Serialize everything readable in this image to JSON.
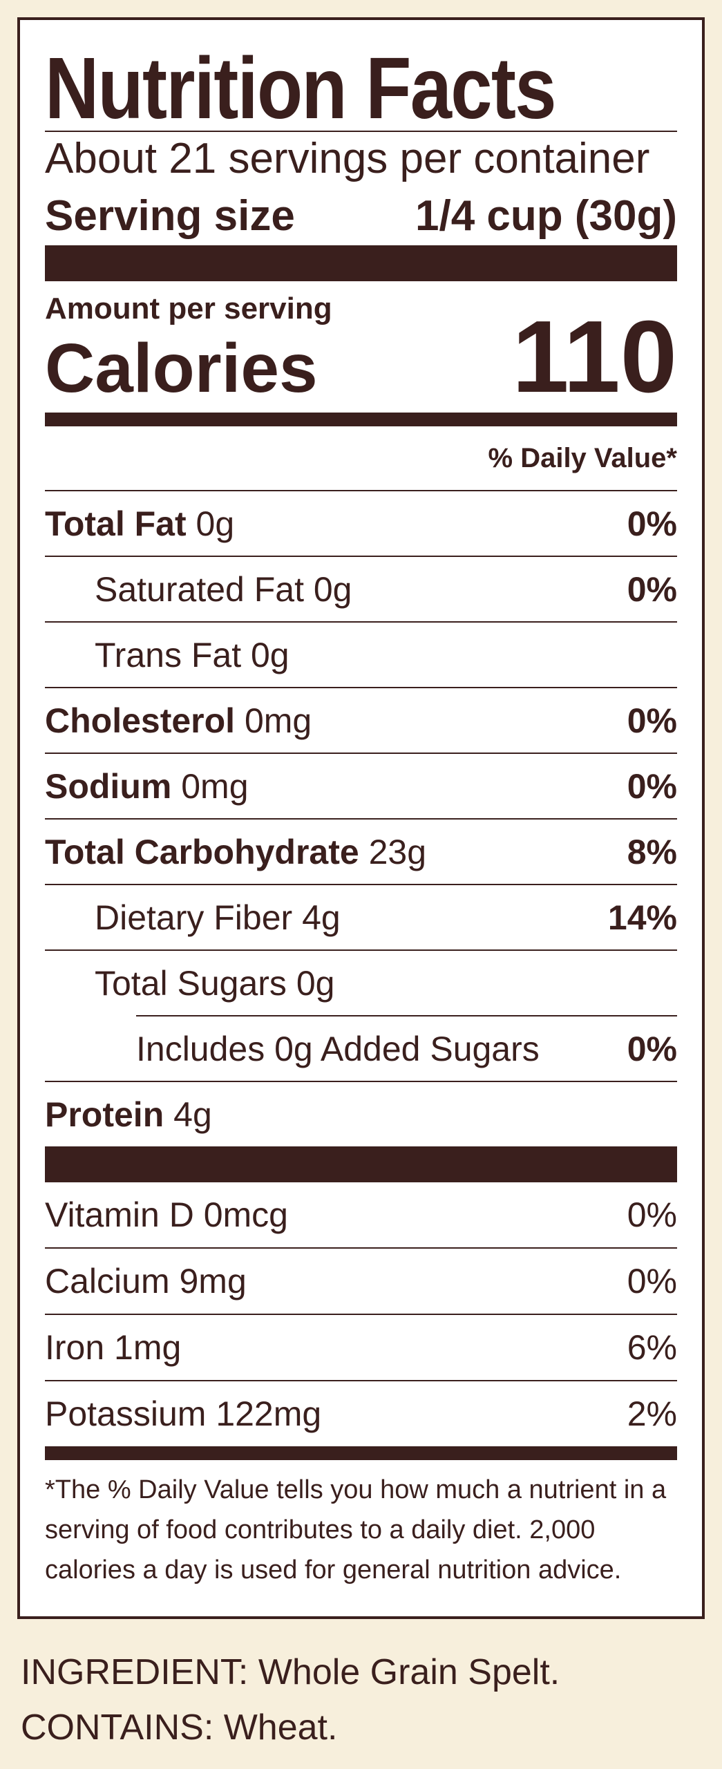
{
  "label": {
    "title": "Nutrition Facts",
    "servings_per_container": "About 21 servings per container",
    "serving_size_label": "Serving size",
    "serving_size_value": "1/4 cup (30g)",
    "amount_per_serving": "Amount per serving",
    "calories_label": "Calories",
    "calories_value": "110",
    "dv_header": "% Daily Value*",
    "nutrients": [
      {
        "name": "Total Fat",
        "amount": "0g",
        "dv": "0%"
      },
      {
        "name": "Saturated Fat 0g",
        "dv": "0%"
      },
      {
        "name": "Trans Fat 0g"
      },
      {
        "name": "Cholesterol",
        "amount": "0mg",
        "dv": "0%"
      },
      {
        "name": "Sodium",
        "amount": "0mg",
        "dv": "0%"
      },
      {
        "name": "Total Carbohydrate",
        "amount": "23g",
        "dv": "8%"
      },
      {
        "name": "Dietary Fiber 4g",
        "dv": "14%"
      },
      {
        "name": "Total Sugars 0g"
      },
      {
        "name": "Includes 0g Added Sugars",
        "dv": "0%"
      },
      {
        "name": "Protein",
        "amount": "4g"
      }
    ],
    "vitamins": [
      {
        "name": "Vitamin D 0mcg",
        "dv": "0%"
      },
      {
        "name": "Calcium 9mg",
        "dv": "0%"
      },
      {
        "name": "Iron 1mg",
        "dv": "6%"
      },
      {
        "name": "Potassium 122mg",
        "dv": "2%"
      }
    ],
    "footnote": "*The % Daily Value tells you how much a nutrient in a serving of food contributes to a daily diet. 2,000 calories a day is used for general nutrition advice."
  },
  "ingredients": {
    "ingredient_line": "INGREDIENT: Whole Grain Spelt.",
    "contains_line": "CONTAINS: Wheat."
  },
  "colors": {
    "ink": "#3a1f1d",
    "background": "#f7efdc",
    "panel": "#ffffff"
  }
}
